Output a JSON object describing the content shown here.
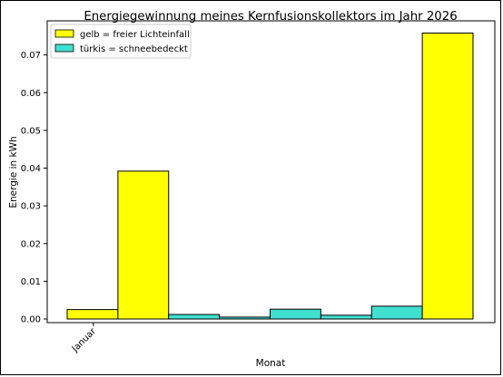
{
  "chart_data": {
    "type": "bar",
    "title": "Energiegewinnung meines Kernfusionskollektors im Jahr 2026",
    "xlabel": "Monat",
    "ylabel": "Energie in kWh",
    "ylim": [
      0,
      0.08
    ],
    "yticks": [
      "0.00",
      "0.01",
      "0.02",
      "0.03",
      "0.04",
      "0.05",
      "0.06",
      "0.07"
    ],
    "xticks": [
      "Januar"
    ],
    "grid": false,
    "legend_position": "top-left",
    "legend": [
      {
        "label": "gelb = freier Lichteinfall",
        "color": "#ffff00"
      },
      {
        "label": "türkis = schneebedeckt",
        "color": "#40e0d0"
      }
    ],
    "bars": [
      {
        "value": 0.0025,
        "color": "#ffff00"
      },
      {
        "value": 0.0392,
        "color": "#ffff00"
      },
      {
        "value": 0.0012,
        "color": "#40e0d0"
      },
      {
        "value": 0.0005,
        "color": "#40e0d0"
      },
      {
        "value": 0.0026,
        "color": "#40e0d0"
      },
      {
        "value": 0.001,
        "color": "#40e0d0"
      },
      {
        "value": 0.0034,
        "color": "#40e0d0"
      },
      {
        "value": 0.0758,
        "color": "#ffff00"
      }
    ]
  }
}
